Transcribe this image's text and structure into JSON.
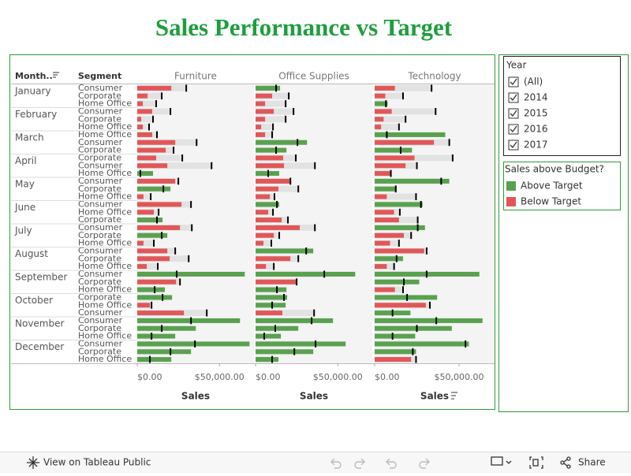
{
  "chart_data": {
    "type": "bullet",
    "title": "Sales Performance vs Target",
    "row_headers": [
      "Month..",
      "Segment"
    ],
    "axis_label": "Sales",
    "xlim": [
      0,
      71000
    ],
    "xticks": [
      {
        "value": 0,
        "label": "$0.00"
      },
      {
        "value": 50000,
        "label": "$50,000.00"
      }
    ],
    "target_color": "#000000",
    "rows": [
      {
        "month": "January",
        "segments": [
          "Consumer",
          "Corporate",
          "Home Office"
        ]
      },
      {
        "month": "February",
        "segments": [
          "Consumer",
          "Corporate",
          "Home Office"
        ]
      },
      {
        "month": "March",
        "segments": [
          "Home Office",
          "Consumer",
          "Corporate"
        ]
      },
      {
        "month": "April",
        "segments": [
          "Corporate",
          "Consumer",
          "Home Office"
        ]
      },
      {
        "month": "May",
        "segments": [
          "Consumer",
          "Corporate",
          "Home Office"
        ]
      },
      {
        "month": "June",
        "segments": [
          "Consumer",
          "Home Office",
          "Corporate"
        ]
      },
      {
        "month": "July",
        "segments": [
          "Consumer",
          "Corporate",
          "Home Office"
        ]
      },
      {
        "month": "August",
        "segments": [
          "Consumer",
          "Corporate",
          "Home Office"
        ]
      },
      {
        "month": "September",
        "segments": [
          "Consumer",
          "Corporate",
          "Home Office"
        ]
      },
      {
        "month": "October",
        "segments": [
          "Corporate",
          "Home Office",
          "Consumer"
        ]
      },
      {
        "month": "November",
        "segments": [
          "Consumer",
          "Corporate",
          "Home Office"
        ]
      },
      {
        "month": "December",
        "segments": [
          "Consumer",
          "Corporate",
          "Home Office"
        ]
      }
    ],
    "panels": [
      {
        "name": "Furniture",
        "sales": [
          [
            20700,
            6300,
            3400
          ],
          [
            9100,
            2400,
            3400
          ],
          [
            9100,
            23100,
            17300
          ],
          [
            11500,
            18300,
            9600
          ],
          [
            23100,
            20200,
            3800
          ],
          [
            26900,
            10100,
            15400
          ],
          [
            26000,
            18300,
            3800
          ],
          [
            18300,
            19700,
            5800
          ],
          [
            65400,
            23600,
            16800
          ],
          [
            21200,
            7700,
            28400
          ],
          [
            62500,
            35600,
            23100
          ],
          [
            68300,
            32700,
            20700
          ]
        ],
        "targets": [
          [
            29800,
            14900,
            11500
          ],
          [
            20200,
            9600,
            7200
          ],
          [
            12000,
            36100,
            22100
          ],
          [
            27400,
            45200,
            1900
          ],
          [
            25000,
            15900,
            8200
          ],
          [
            32700,
            13000,
            12000
          ],
          [
            33200,
            14900,
            10100
          ],
          [
            23100,
            31300,
            12500
          ],
          [
            24000,
            26000,
            10600
          ],
          [
            15400,
            8700,
            42300
          ],
          [
            32700,
            14900,
            8700
          ],
          [
            35100,
            20200,
            7700
          ]
        ]
      },
      {
        "name": "Office Supplies",
        "sales": [
          [
            14900,
            10100,
            5800
          ],
          [
            11100,
            5800,
            3400
          ],
          [
            5800,
            31300,
            18800
          ],
          [
            16800,
            17300,
            14400
          ],
          [
            20700,
            13900,
            8700
          ],
          [
            14400,
            7700,
            15900
          ],
          [
            26900,
            11100,
            4800
          ],
          [
            35100,
            21200,
            6300
          ],
          [
            60600,
            24500,
            18800
          ],
          [
            19200,
            18300,
            16300
          ],
          [
            47100,
            26000,
            15400
          ],
          [
            54800,
            35100,
            13900
          ]
        ],
        "targets": [
          [
            12500,
            20200,
            18300
          ],
          [
            23100,
            18300,
            10600
          ],
          [
            10100,
            25500,
            12500
          ],
          [
            24500,
            36100,
            7700
          ],
          [
            21200,
            26000,
            11500
          ],
          [
            13000,
            10600,
            19700
          ],
          [
            36100,
            14400,
            9600
          ],
          [
            30800,
            26000,
            11100
          ],
          [
            41800,
            25000,
            13000
          ],
          [
            17300,
            10100,
            35600
          ],
          [
            34100,
            12000,
            5300
          ],
          [
            36500,
            23600,
            10100
          ]
        ]
      },
      {
        "name": "Technology",
        "sales": [
          [
            12000,
            6300,
            7700
          ],
          [
            10100,
            5300,
            3800
          ],
          [
            41800,
            35100,
            22100
          ],
          [
            23600,
            18300,
            9100
          ],
          [
            44200,
            13000,
            7200
          ],
          [
            28400,
            11500,
            14400
          ],
          [
            29800,
            17300,
            9100
          ],
          [
            29300,
            16800,
            7200
          ],
          [
            62000,
            26400,
            12000
          ],
          [
            37000,
            30300,
            21200
          ],
          [
            63900,
            45700,
            24000
          ],
          [
            55800,
            24500,
            21600
          ]
        ],
        "targets": [
          [
            33700,
            16800,
            6700
          ],
          [
            36100,
            18300,
            14400
          ],
          [
            7200,
            44200,
            15400
          ],
          [
            46200,
            25000,
            9600
          ],
          [
            39400,
            12500,
            24500
          ],
          [
            27400,
            14900,
            25500
          ],
          [
            25500,
            21600,
            14400
          ],
          [
            30800,
            13000,
            11500
          ],
          [
            30800,
            17300,
            16800
          ],
          [
            19200,
            32700,
            10600
          ],
          [
            36500,
            25000,
            10600
          ],
          [
            53800,
            22600,
            24500
          ]
        ]
      }
    ],
    "year_filter": {
      "title": "Year",
      "items": [
        "(All)",
        "2014",
        "2015",
        "2016",
        "2017"
      ]
    },
    "legend": {
      "title": "Sales above Budget?",
      "items": [
        {
          "label": "Above Target",
          "color": "#59a14f"
        },
        {
          "label": "Below Target",
          "color": "#e15759"
        }
      ]
    },
    "toolbar": {
      "view_link": "View on Tableau Public",
      "share": "Share"
    }
  }
}
